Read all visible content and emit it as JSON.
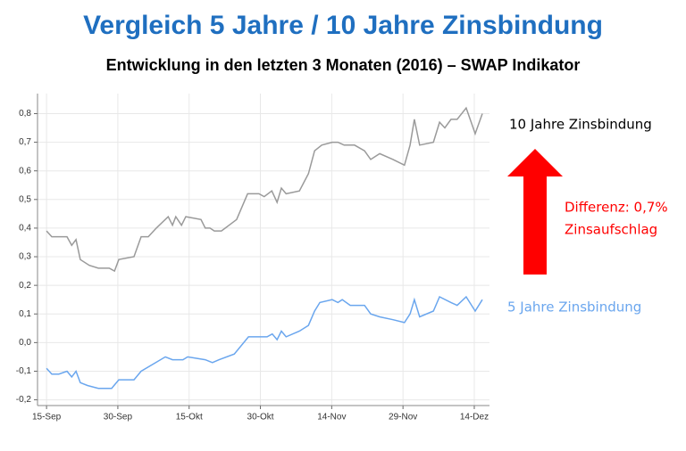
{
  "chart_data": {
    "type": "line",
    "title": "Vergleich 5 Jahre / 10 Jahre Zinsbindung",
    "subtitle": "Entwicklung in den letzten 3 Monaten (2016) – SWAP Indikator",
    "annotations": [
      "Differenz: 0,7%",
      "Zinsaufschlag"
    ],
    "xlim": [
      -1.9,
      93.2
    ],
    "xticks": [
      {
        "value": 0,
        "label": "15-Sep"
      },
      {
        "value": 15,
        "label": "30-Sep"
      },
      {
        "value": 30,
        "label": "15-Okt"
      },
      {
        "value": 45,
        "label": "30-Okt"
      },
      {
        "value": 60,
        "label": "14-Nov"
      },
      {
        "value": 75,
        "label": "29-Nov"
      },
      {
        "value": 90,
        "label": "14-Dez"
      }
    ],
    "ylim": [
      -0.22,
      0.87
    ],
    "yticks": [
      {
        "value": -0.2,
        "label": "-0,2"
      },
      {
        "value": -0.1,
        "label": "-0,1"
      },
      {
        "value": 0,
        "label": "0,0"
      },
      {
        "value": 0.1,
        "label": "0,1"
      },
      {
        "value": 0.2,
        "label": "0,2"
      },
      {
        "value": 0.3,
        "label": "0,3"
      },
      {
        "value": 0.4,
        "label": "0,4"
      },
      {
        "value": 0.5,
        "label": "0,5"
      },
      {
        "value": 0.6,
        "label": "0,6"
      },
      {
        "value": 0.7,
        "label": "0,7"
      },
      {
        "value": 0.8,
        "label": "0,8"
      }
    ],
    "grid": true,
    "series": [
      {
        "name": "10 Jahre Zinsbindung",
        "color": "#9a9a9a",
        "x": [
          0,
          1.1,
          4.3,
          5.3,
          6.2,
          7.1,
          9.0,
          10.9,
          13.2,
          14.3,
          15.2,
          18.4,
          19.9,
          21.4,
          23.1,
          25.6,
          26.5,
          27.2,
          28.4,
          29.3,
          32.5,
          33.4,
          34.4,
          35.3,
          36.8,
          40.0,
          42.3,
          44.7,
          45.8,
          47.4,
          48.5,
          49.4,
          50.4,
          53.2,
          55.1,
          56.4,
          57.9,
          60.1,
          61.3,
          62.6,
          64.8,
          66.9,
          68.2,
          70.1,
          72.9,
          75.3,
          76.5,
          77.4,
          78.5,
          81.4,
          82.7,
          83.8,
          85.1,
          86.4,
          88.3,
          90.2,
          91.7
        ],
        "values": [
          0.39,
          0.37,
          0.37,
          0.34,
          0.36,
          0.29,
          0.27,
          0.26,
          0.26,
          0.25,
          0.29,
          0.3,
          0.37,
          0.37,
          0.4,
          0.44,
          0.41,
          0.44,
          0.41,
          0.44,
          0.43,
          0.4,
          0.4,
          0.39,
          0.39,
          0.43,
          0.52,
          0.52,
          0.51,
          0.53,
          0.49,
          0.54,
          0.52,
          0.53,
          0.59,
          0.67,
          0.69,
          0.7,
          0.7,
          0.69,
          0.69,
          0.67,
          0.64,
          0.66,
          0.64,
          0.62,
          0.69,
          0.78,
          0.69,
          0.7,
          0.77,
          0.75,
          0.78,
          0.78,
          0.82,
          0.73,
          0.8
        ]
      },
      {
        "name": "5 Jahre Zinsbindung",
        "color": "#6aa6ee",
        "x": [
          0,
          1.1,
          2.6,
          4.3,
          5.3,
          6.2,
          7.1,
          8.6,
          10.9,
          13.7,
          15.2,
          18.4,
          19.9,
          25.0,
          26.5,
          28.7,
          29.7,
          33.4,
          34.9,
          36.3,
          39.5,
          42.5,
          45.3,
          46.4,
          47.5,
          48.5,
          49.4,
          50.4,
          53.2,
          55.1,
          56.4,
          57.5,
          60.1,
          61.3,
          62.2,
          63.9,
          66.9,
          68.2,
          70.1,
          72.9,
          75.3,
          76.5,
          77.4,
          78.5,
          81.4,
          82.7,
          85.1,
          86.4,
          88.3,
          90.2,
          91.7
        ],
        "values": [
          -0.09,
          -0.11,
          -0.11,
          -0.1,
          -0.12,
          -0.1,
          -0.14,
          -0.15,
          -0.16,
          -0.16,
          -0.13,
          -0.13,
          -0.1,
          -0.05,
          -0.06,
          -0.06,
          -0.05,
          -0.06,
          -0.07,
          -0.06,
          -0.04,
          0.02,
          0.02,
          0.02,
          0.03,
          0.01,
          0.04,
          0.02,
          0.04,
          0.06,
          0.11,
          0.14,
          0.15,
          0.14,
          0.15,
          0.13,
          0.13,
          0.1,
          0.09,
          0.08,
          0.07,
          0.1,
          0.15,
          0.09,
          0.11,
          0.16,
          0.14,
          0.13,
          0.16,
          0.11,
          0.15
        ]
      }
    ]
  }
}
